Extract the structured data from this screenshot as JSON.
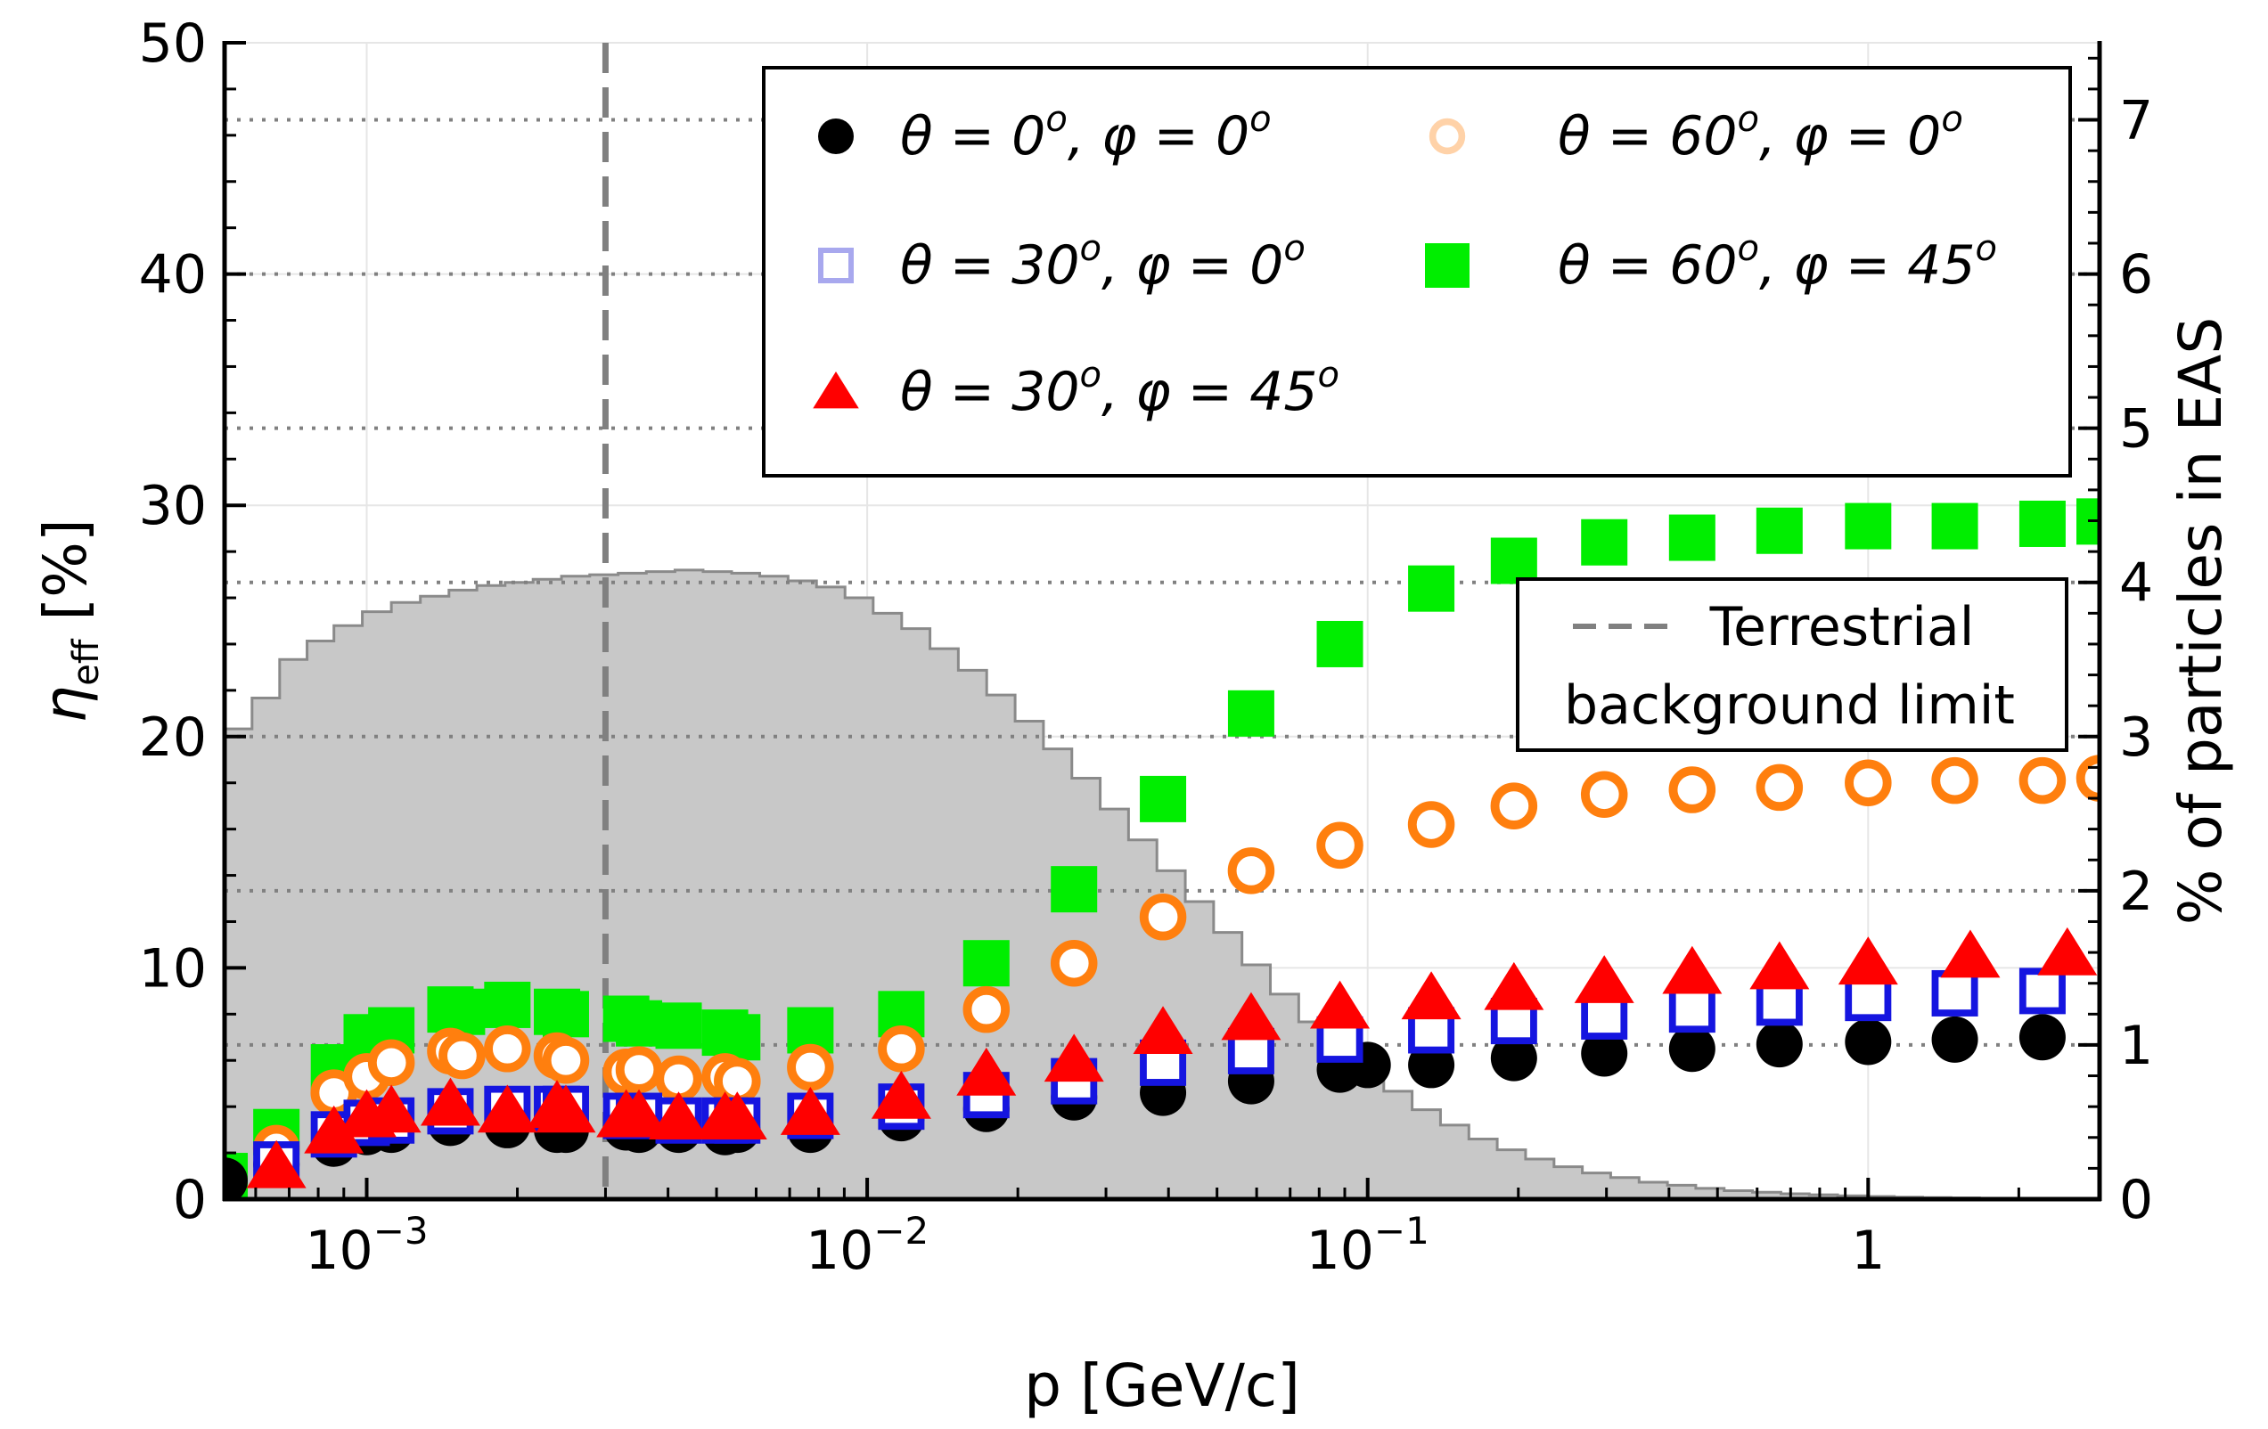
{
  "chart_data": {
    "type": "scatter",
    "x_scale": "log",
    "xlim": [
      0.00052,
      2.9
    ],
    "ylim": [
      0,
      50
    ],
    "y2lim": [
      0,
      7.5
    ],
    "xlabel": "p [GeV/c]",
    "ylabel_main": "η",
    "ylabel_sub": "eff",
    "ylabel_unit": " [%]",
    "y2label": "% of particles in EAS",
    "x_ticks": [
      {
        "value": 0.001,
        "base": "10",
        "exp": "−3"
      },
      {
        "value": 0.01,
        "base": "10",
        "exp": "−2"
      },
      {
        "value": 0.1,
        "base": "10",
        "exp": "−1"
      },
      {
        "value": 1,
        "base": "1",
        "exp": ""
      }
    ],
    "y_ticks": [
      0,
      10,
      20,
      30,
      40,
      50
    ],
    "y2_ticks": [
      0,
      1,
      2,
      3,
      4,
      5,
      6,
      7
    ],
    "grid": true,
    "threshold": {
      "x": 0.003,
      "label_line1": "Terrestrial",
      "label_line2": "background limit"
    },
    "histogram": {
      "name": "% of particles in EAS",
      "edges": [
        0.00052,
        0.00059,
        0.00067,
        0.00076,
        0.00086,
        0.00098,
        0.00112,
        0.00128,
        0.00146,
        0.00166,
        0.00189,
        0.00215,
        0.00245,
        0.00279,
        0.00318,
        0.00362,
        0.00413,
        0.0047,
        0.00536,
        0.0061,
        0.00695,
        0.00792,
        0.00903,
        0.01028,
        0.01172,
        0.01335,
        0.01521,
        0.01733,
        0.01975,
        0.0225,
        0.02564,
        0.02921,
        0.03328,
        0.03792,
        0.04321,
        0.04923,
        0.05609,
        0.06391,
        0.07282,
        0.08297,
        0.09453,
        0.1077,
        0.1227,
        0.1398,
        0.1593,
        0.1815,
        0.2068,
        0.2357,
        0.2685,
        0.3059,
        0.3486,
        0.3972,
        0.4525,
        0.5156,
        0.5875,
        0.6694,
        0.7627,
        0.869,
        0.99,
        1.128,
        1.285,
        1.464,
        1.669,
        1.901,
        2.166,
        2.468,
        2.9
      ],
      "values": [
        3.05,
        3.25,
        3.5,
        3.62,
        3.72,
        3.81,
        3.87,
        3.91,
        3.95,
        3.98,
        4.0,
        4.02,
        4.04,
        4.05,
        4.06,
        4.07,
        4.08,
        4.07,
        4.06,
        4.04,
        4.01,
        3.97,
        3.9,
        3.8,
        3.7,
        3.57,
        3.43,
        3.27,
        3.1,
        2.92,
        2.73,
        2.53,
        2.33,
        2.13,
        1.93,
        1.73,
        1.52,
        1.33,
        1.15,
        0.98,
        0.83,
        0.7,
        0.58,
        0.48,
        0.39,
        0.32,
        0.26,
        0.21,
        0.17,
        0.14,
        0.11,
        0.09,
        0.07,
        0.055,
        0.045,
        0.035,
        0.028,
        0.022,
        0.017,
        0.013,
        0.01,
        0.008,
        0.006,
        0.005,
        0.004,
        0.003
      ]
    },
    "series": [
      {
        "name": "θ = 0°, φ = 0°",
        "theta": "0",
        "phi": "0",
        "marker": "filled-circle",
        "color": "#000000",
        "x": [
          0.00052,
          0.00066,
          0.00086,
          0.001,
          0.00112,
          0.00147,
          0.00191,
          0.0024,
          0.0025,
          0.0033,
          0.0035,
          0.0042,
          0.0052,
          0.0055,
          0.0077,
          0.0117,
          0.0173,
          0.0259,
          0.039,
          0.0585,
          0.088,
          0.1,
          0.134,
          0.196,
          0.297,
          0.445,
          0.665,
          1.0,
          1.49,
          2.23
        ],
        "y": [
          0.8,
          1.5,
          2.4,
          2.9,
          3.0,
          3.3,
          3.2,
          3.0,
          3.0,
          3.1,
          3.0,
          3.0,
          2.9,
          3.0,
          3.0,
          3.5,
          3.9,
          4.4,
          4.6,
          5.1,
          5.6,
          5.8,
          5.8,
          6.1,
          6.3,
          6.5,
          6.7,
          6.8,
          6.9,
          7.0
        ]
      },
      {
        "name": "θ = 30°, φ = 0°",
        "theta": "30",
        "phi": "0",
        "marker": "open-square",
        "color": "#1515e0",
        "legend_color": "#a8a8ee",
        "x": [
          0.00066,
          0.00086,
          0.001,
          0.00112,
          0.00147,
          0.00191,
          0.0024,
          0.0025,
          0.0033,
          0.0035,
          0.0042,
          0.0052,
          0.0055,
          0.0077,
          0.0117,
          0.0173,
          0.0259,
          0.039,
          0.0585,
          0.088,
          0.134,
          0.196,
          0.297,
          0.445,
          0.665,
          1.0,
          1.49,
          2.23
        ],
        "y": [
          1.5,
          2.8,
          3.3,
          3.4,
          3.8,
          3.9,
          3.9,
          3.9,
          3.6,
          3.6,
          3.4,
          3.4,
          3.4,
          3.6,
          4.0,
          4.5,
          5.1,
          5.9,
          6.4,
          6.9,
          7.3,
          7.7,
          7.9,
          8.2,
          8.5,
          8.7,
          8.9,
          9.0
        ]
      },
      {
        "name": "θ = 30°, φ = 45°",
        "theta": "30",
        "phi": "45",
        "marker": "filled-triangle",
        "color": "#ff0000",
        "x": [
          0.00066,
          0.00086,
          0.001,
          0.00112,
          0.00147,
          0.00191,
          0.0024,
          0.0025,
          0.0033,
          0.0035,
          0.0042,
          0.0052,
          0.0055,
          0.0077,
          0.0117,
          0.0173,
          0.0259,
          0.039,
          0.0585,
          0.088,
          0.134,
          0.196,
          0.297,
          0.445,
          0.665,
          1.0,
          1.6,
          2.5
        ],
        "y": [
          1.4,
          2.9,
          3.6,
          3.8,
          4.1,
          3.8,
          4.0,
          3.8,
          3.6,
          3.6,
          3.5,
          3.5,
          3.5,
          3.7,
          4.4,
          5.4,
          6.0,
          7.2,
          7.8,
          8.3,
          8.7,
          9.1,
          9.4,
          9.8,
          10.0,
          10.2,
          10.5,
          10.6
        ]
      },
      {
        "name": "θ = 60°, φ = 0°",
        "theta": "60",
        "phi": "0",
        "marker": "open-circle",
        "color": "#ff7f0e",
        "legend_color": "#ffd2a8",
        "x": [
          0.00066,
          0.00086,
          0.001,
          0.00112,
          0.00147,
          0.00155,
          0.00191,
          0.0024,
          0.0025,
          0.0033,
          0.0035,
          0.0042,
          0.0052,
          0.0055,
          0.0077,
          0.0117,
          0.0173,
          0.0259,
          0.039,
          0.0585,
          0.088,
          0.134,
          0.196,
          0.297,
          0.445,
          0.665,
          1.0,
          1.49,
          2.23,
          2.9
        ],
        "y": [
          2.2,
          4.6,
          5.3,
          5.9,
          6.4,
          6.2,
          6.5,
          6.2,
          6.0,
          5.5,
          5.6,
          5.2,
          5.3,
          5.1,
          5.7,
          6.5,
          8.2,
          10.2,
          12.2,
          14.2,
          15.3,
          16.2,
          17.0,
          17.5,
          17.7,
          17.8,
          18.0,
          18.1,
          18.1,
          18.2
        ]
      },
      {
        "name": "θ = 60°, φ = 45°",
        "theta": "60",
        "phi": "45",
        "marker": "filled-square",
        "color": "#00ee00",
        "x": [
          0.00052,
          0.00066,
          0.00086,
          0.001,
          0.00112,
          0.00147,
          0.00155,
          0.00191,
          0.0024,
          0.0025,
          0.0033,
          0.0035,
          0.0042,
          0.0052,
          0.0055,
          0.0077,
          0.0117,
          0.0173,
          0.0259,
          0.039,
          0.0585,
          0.088,
          0.134,
          0.196,
          0.297,
          0.445,
          0.665,
          1.0,
          1.49,
          2.23,
          2.9
        ],
        "y": [
          1.0,
          2.9,
          5.7,
          7.0,
          7.3,
          8.2,
          8.1,
          8.4,
          8.1,
          8.0,
          7.8,
          7.6,
          7.5,
          7.2,
          7.0,
          7.3,
          8.0,
          10.2,
          13.4,
          17.3,
          21.0,
          24.0,
          26.4,
          27.6,
          28.4,
          28.6,
          28.9,
          29.1,
          29.1,
          29.2,
          29.3
        ]
      }
    ],
    "legend_position": "top-right"
  }
}
